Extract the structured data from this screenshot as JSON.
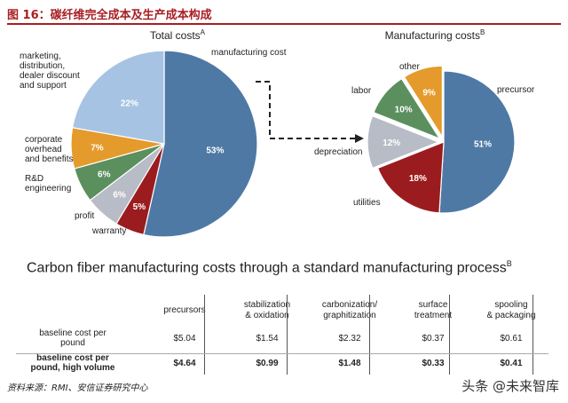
{
  "figure": {
    "title": "图 16：碳纤维完全成本及生产成本构成",
    "source": "资料来源：RMI、安信证券研究中心",
    "watermark": "头条 @未来智库"
  },
  "chart_data": [
    {
      "type": "pie",
      "title": "Total costs",
      "title_sup": "A",
      "slices": [
        {
          "label": "manufacturing cost",
          "value": 53,
          "display": "53%",
          "color": "#4f79a5"
        },
        {
          "label": "warranty",
          "value": 5,
          "display": "5%",
          "color": "#9b1c1f"
        },
        {
          "label": "profit",
          "value": 6,
          "display": "6%",
          "color": "#b7bcc6"
        },
        {
          "label": "R&D\nengineering",
          "value": 6,
          "display": "6%",
          "color": "#5b8f5e"
        },
        {
          "label": "corporate\noverhead\nand benefits",
          "value": 7,
          "display": "7%",
          "color": "#e59a2c"
        },
        {
          "label": "marketing,\ndistribution,\ndealer discount\nand support",
          "value": 22,
          "display": "22%",
          "color": "#a7c3e3"
        }
      ]
    },
    {
      "type": "pie",
      "title": "Manufacturing costs",
      "title_sup": "B",
      "slices": [
        {
          "label": "precursor",
          "value": 51,
          "display": "51%",
          "color": "#4f79a5"
        },
        {
          "label": "utilities",
          "value": 18,
          "display": "18%",
          "color": "#9b1c1f"
        },
        {
          "label": "depreciation",
          "value": 12,
          "display": "12%",
          "color": "#b7bcc6"
        },
        {
          "label": "labor",
          "value": 10,
          "display": "10%",
          "color": "#5b8f5e"
        },
        {
          "label": "other",
          "value": 9,
          "display": "9%",
          "color": "#e59a2c"
        }
      ]
    },
    {
      "type": "table",
      "title": "Carbon fiber manufacturing costs through a standard manufacturing process",
      "title_sup": "B",
      "columns": [
        "precursors",
        "stabilization\n& oxidation",
        "carbonization/\ngraphitization",
        "surface\ntreatment",
        "spooling\n& packaging"
      ],
      "rows": [
        {
          "label": "baseline cost per\npound",
          "values": [
            "$5.04",
            "$1.54",
            "$2.32",
            "$0.37",
            "$0.61"
          ],
          "bold": false
        },
        {
          "label": "baseline cost per\npound, high volume",
          "values": [
            "$4.64",
            "$0.99",
            "$1.48",
            "$0.33",
            "$0.41"
          ],
          "bold": true
        }
      ]
    }
  ]
}
